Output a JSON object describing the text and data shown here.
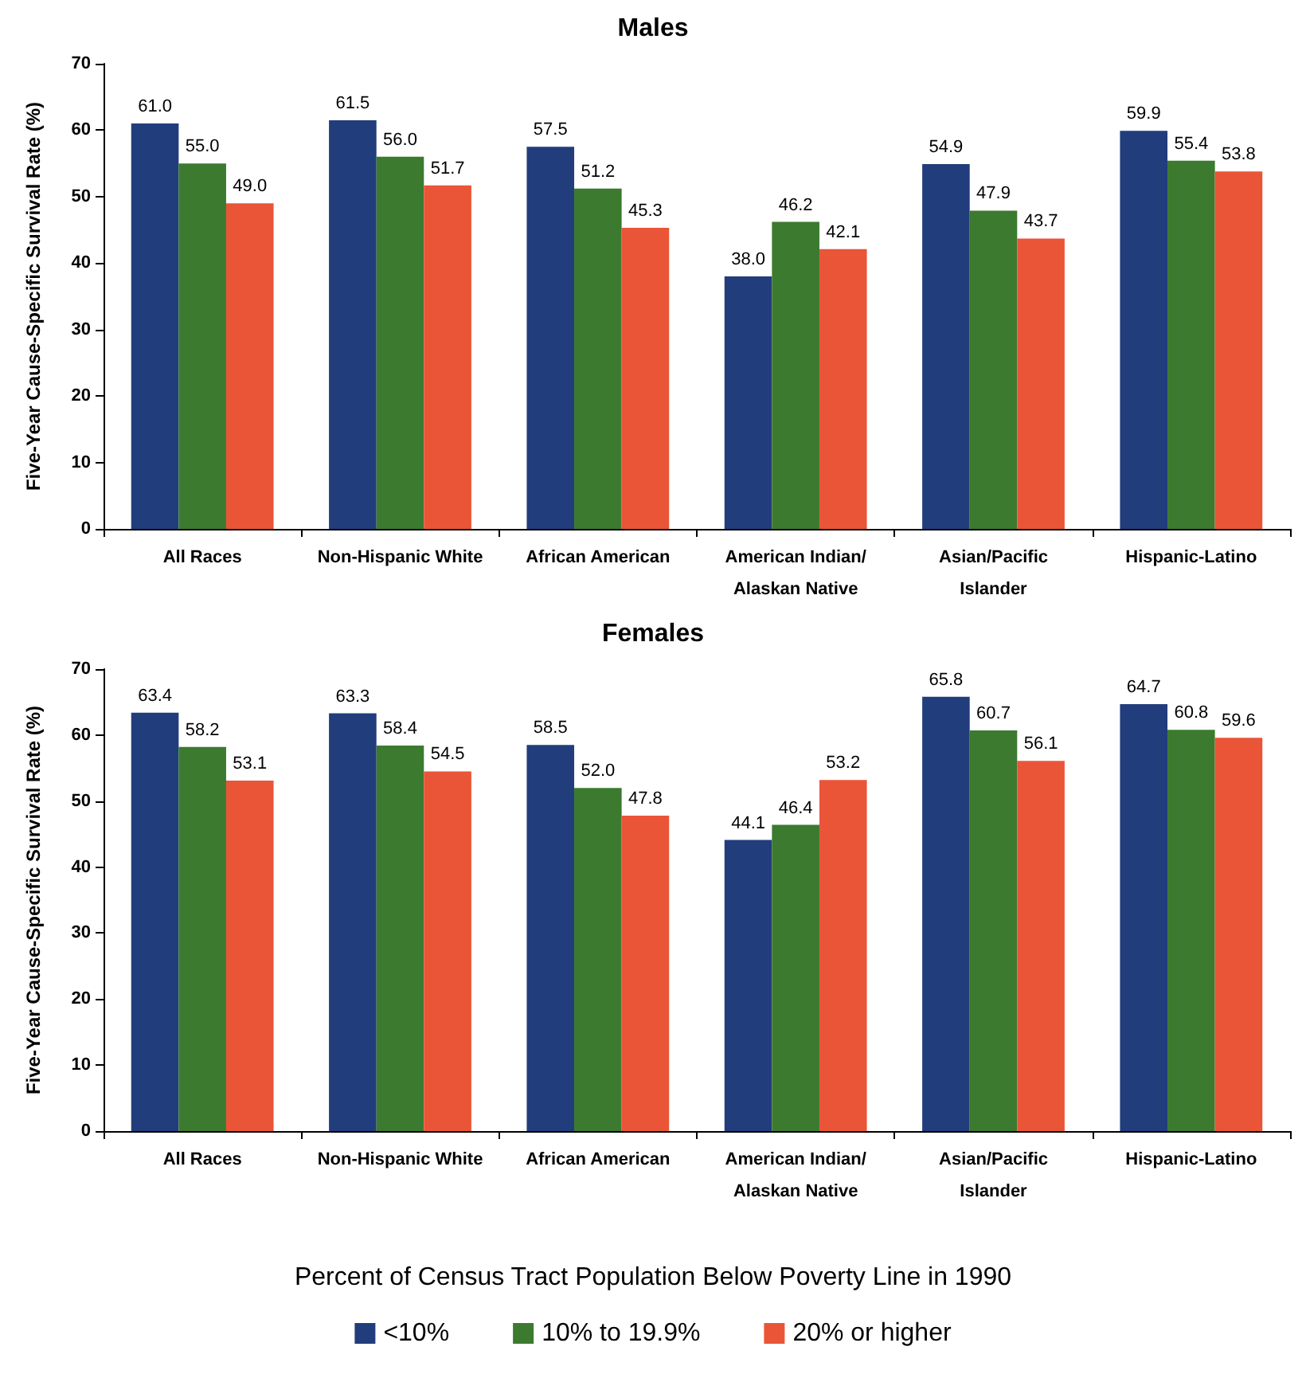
{
  "chart_data": [
    {
      "type": "bar",
      "title": "Males",
      "ylabel": "Five-Year Cause-Specific Survival Rate (%)",
      "categories": [
        "All Races",
        "Non-Hispanic White",
        "African American",
        "American Indian/Alaskan Native",
        "Asian/Pacific Islander",
        "Hispanic-Latino"
      ],
      "ylim": [
        0,
        70
      ],
      "yticks": [
        0,
        10,
        20,
        30,
        40,
        50,
        60,
        70
      ],
      "grid": false,
      "legend": false,
      "series": [
        {
          "color": "#213d7c",
          "values": [
            61.0,
            61.5,
            57.5,
            38.0,
            54.9,
            59.9
          ],
          "value_labels": [
            "61.0",
            "61.5",
            "57.5",
            "38.0",
            "54.9",
            "59.9"
          ]
        },
        {
          "color": "#3b7a2f",
          "values": [
            55.0,
            56.0,
            51.2,
            46.2,
            47.9,
            55.4
          ],
          "value_labels": [
            "55.0",
            "56.0",
            "51.2",
            "46.2",
            "47.9",
            "55.4"
          ]
        },
        {
          "color": "#ea5538",
          "values": [
            49.0,
            51.7,
            45.3,
            42.1,
            43.7,
            53.8
          ],
          "value_labels": [
            "49.0",
            "51.7",
            "45.3",
            "42.1",
            "43.7",
            "53.8"
          ]
        }
      ]
    },
    {
      "type": "bar",
      "title": "Females",
      "ylabel": "Five-Year Cause-Specific Survival Rate (%)",
      "categories": [
        "All Races",
        "Non-Hispanic White",
        "African American",
        "American Indian/Alaskan Native",
        "Asian/Pacific Islander",
        "Hispanic-Latino"
      ],
      "ylim": [
        0,
        70
      ],
      "yticks": [
        0,
        10,
        20,
        30,
        40,
        50,
        60,
        70
      ],
      "grid": false,
      "legend": "bottom",
      "legend_title": "Percent of Census Tract Population Below Poverty Line in 1990",
      "series": [
        {
          "name": "<10%",
          "color": "#213d7c",
          "values": [
            63.4,
            63.3,
            58.5,
            44.1,
            65.8,
            64.7
          ],
          "value_labels": [
            "63.4",
            "63.3",
            "58.5",
            "44.1",
            "65.8",
            "64.7"
          ]
        },
        {
          "name": "10% to 19.9%",
          "color": "#3b7a2f",
          "values": [
            58.2,
            58.4,
            52.0,
            46.4,
            60.7,
            60.8
          ],
          "value_labels": [
            "58.2",
            "58.4",
            "52.0",
            "46.4",
            "60.7",
            "60.8"
          ]
        },
        {
          "name": "20% or higher",
          "color": "#ea5538",
          "values": [
            53.1,
            54.5,
            47.8,
            53.2,
            56.1,
            59.6
          ],
          "value_labels": [
            "53.1",
            "54.5",
            "47.8",
            "53.2",
            "56.1",
            "59.6"
          ]
        }
      ]
    }
  ]
}
